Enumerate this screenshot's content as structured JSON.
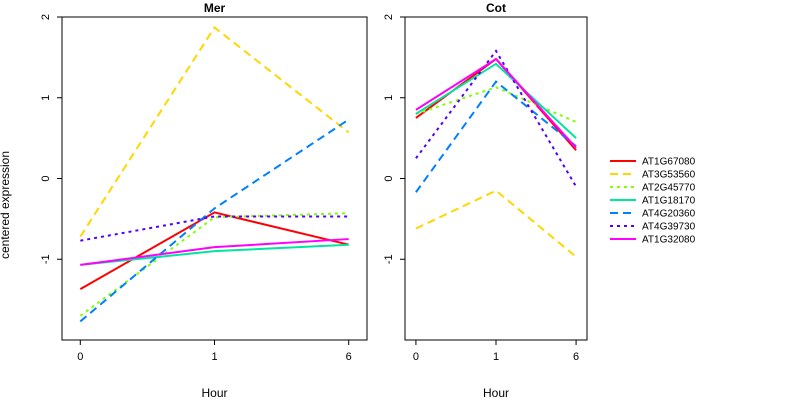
{
  "chart_data": {
    "type": "line",
    "ylabel": "centered expression",
    "ylim": [
      -2,
      2
    ],
    "yticks": [
      -1,
      0,
      1,
      2
    ],
    "xticks": [
      "0",
      "1",
      "6"
    ],
    "grid": false,
    "legend_position": "right",
    "panels": [
      {
        "title": "Mer",
        "xlabel": "Hour",
        "series": [
          {
            "name": "AT1G67080",
            "color": "#ff0000",
            "dash": "solid",
            "values": [
              -1.37,
              -0.42,
              -0.82
            ]
          },
          {
            "name": "AT3G53560",
            "color": "#ffd700",
            "dash": "dashed",
            "values": [
              -0.72,
              1.87,
              0.57
            ]
          },
          {
            "name": "AT2G45770",
            "color": "#80ff00",
            "dash": "dotted",
            "values": [
              -1.7,
              -0.48,
              -0.43
            ]
          },
          {
            "name": "AT1G18170",
            "color": "#00e5a0",
            "dash": "solid",
            "values": [
              -1.07,
              -0.9,
              -0.82
            ]
          },
          {
            "name": "AT4G20360",
            "color": "#0080ff",
            "dash": "dashed",
            "values": [
              -1.77,
              -0.37,
              0.73
            ]
          },
          {
            "name": "AT4G39730",
            "color": "#5000ff",
            "dash": "dotted",
            "values": [
              -0.77,
              -0.47,
              -0.47
            ]
          },
          {
            "name": "AT1G32080",
            "color": "#ff00ff",
            "dash": "solid",
            "values": [
              -1.07,
              -0.85,
              -0.75
            ]
          }
        ]
      },
      {
        "title": "Cot",
        "xlabel": "Hour",
        "series": [
          {
            "name": "AT1G67080",
            "color": "#ff0000",
            "dash": "solid",
            "values": [
              0.75,
              1.48,
              0.35
            ]
          },
          {
            "name": "AT3G53560",
            "color": "#ffd700",
            "dash": "dashed",
            "values": [
              -0.62,
              -0.15,
              -0.97
            ]
          },
          {
            "name": "AT2G45770",
            "color": "#80ff00",
            "dash": "dotted",
            "values": [
              0.8,
              1.13,
              0.7
            ]
          },
          {
            "name": "AT1G18170",
            "color": "#00e5a0",
            "dash": "solid",
            "values": [
              0.8,
              1.42,
              0.5
            ]
          },
          {
            "name": "AT4G20360",
            "color": "#0080ff",
            "dash": "dashed",
            "values": [
              -0.17,
              1.2,
              0.4
            ]
          },
          {
            "name": "AT4G39730",
            "color": "#5000ff",
            "dash": "dotted",
            "values": [
              0.25,
              1.58,
              -0.1
            ]
          },
          {
            "name": "AT1G32080",
            "color": "#ff00ff",
            "dash": "solid",
            "values": [
              0.85,
              1.48,
              0.38
            ]
          }
        ]
      }
    ]
  }
}
